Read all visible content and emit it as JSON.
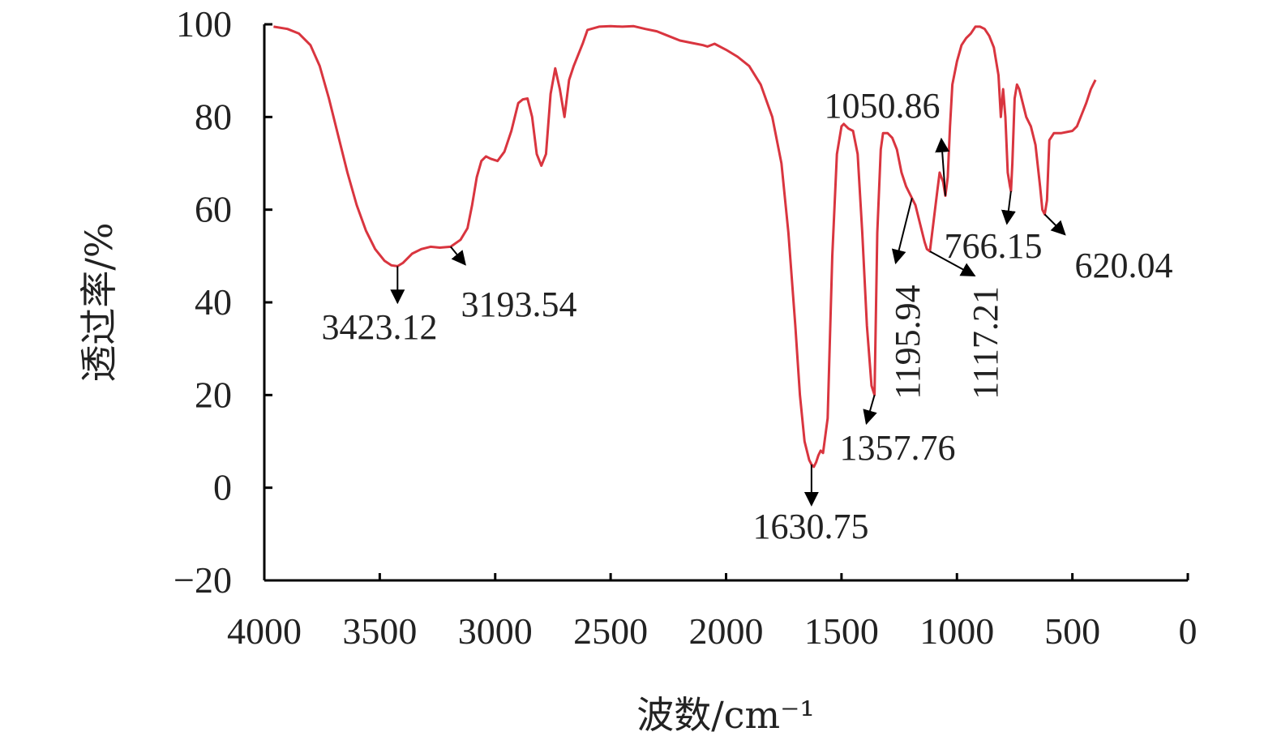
{
  "chart_data": {
    "type": "line",
    "title": "",
    "xlabel": "波数/cm⁻¹",
    "ylabel": "透过率/%",
    "xlim": [
      4000,
      0
    ],
    "ylim": [
      -20,
      100
    ],
    "x_ticks": [
      "4000",
      "3500",
      "3000",
      "2500",
      "2000",
      "1500",
      "1000",
      "500",
      "0"
    ],
    "y_ticks": [
      "100",
      "80",
      "60",
      "40",
      "20",
      "0",
      "−20"
    ],
    "grid": false,
    "line_color": "#d9353f",
    "series": [
      {
        "x": [
          3960,
          3900,
          3850,
          3800,
          3760,
          3720,
          3680,
          3640,
          3600,
          3560,
          3520,
          3480,
          3450,
          3423,
          3400,
          3360,
          3320,
          3280,
          3240,
          3193,
          3150,
          3120,
          3100,
          3080,
          3060,
          3040,
          3020,
          2990,
          2960,
          2930,
          2900,
          2880,
          2860,
          2840,
          2820,
          2800,
          2780,
          2760,
          2740,
          2720,
          2700,
          2680,
          2660,
          2620,
          2600,
          2550,
          2500,
          2450,
          2400,
          2350,
          2300,
          2250,
          2200,
          2150,
          2100,
          2080,
          2050,
          2000,
          1950,
          1900,
          1850,
          1800,
          1760,
          1730,
          1700,
          1680,
          1660,
          1640,
          1630,
          1620,
          1610,
          1600,
          1590,
          1580,
          1560,
          1540,
          1520,
          1500,
          1490,
          1470,
          1450,
          1430,
          1410,
          1390,
          1370,
          1357,
          1345,
          1330,
          1320,
          1300,
          1280,
          1260,
          1240,
          1220,
          1200,
          1195,
          1180,
          1160,
          1140,
          1130,
          1117,
          1100,
          1085,
          1075,
          1060,
          1050,
          1040,
          1030,
          1020,
          1000,
          980,
          960,
          940,
          920,
          900,
          880,
          860,
          840,
          820,
          810,
          800,
          790,
          780,
          770,
          766,
          760,
          750,
          740,
          730,
          720,
          700,
          680,
          660,
          640,
          630,
          620,
          610,
          600,
          580,
          550,
          520,
          500,
          480,
          460,
          440,
          420,
          400
        ],
        "values": [
          99.5,
          99.0,
          98.0,
          95.5,
          91.0,
          84.0,
          76.0,
          68.0,
          61.0,
          55.5,
          51.5,
          49.0,
          48.0,
          47.8,
          48.5,
          50.5,
          51.5,
          52.0,
          51.8,
          52.0,
          53.5,
          56.0,
          61.0,
          67.0,
          70.5,
          71.5,
          71.0,
          70.5,
          72.5,
          77.0,
          83.0,
          83.8,
          84.0,
          80.0,
          72.0,
          69.5,
          72.0,
          85.0,
          90.5,
          86.0,
          80.0,
          88.0,
          91.0,
          96.0,
          98.8,
          99.5,
          99.6,
          99.5,
          99.6,
          99.0,
          98.5,
          97.5,
          96.5,
          96.0,
          95.5,
          95.2,
          95.8,
          94.5,
          93.0,
          91.0,
          87.0,
          80.0,
          70.0,
          55.0,
          35.0,
          20.0,
          10.0,
          6.0,
          5.0,
          4.5,
          5.5,
          7.0,
          8.0,
          7.5,
          15.0,
          50.0,
          72.0,
          78.0,
          78.5,
          77.5,
          77.0,
          72.0,
          55.0,
          35.0,
          22.0,
          20.0,
          55.0,
          73.0,
          76.5,
          76.5,
          75.5,
          73.0,
          68.0,
          65.0,
          63.0,
          62.5,
          61.0,
          57.0,
          53.0,
          51.5,
          51.0,
          58.0,
          64.0,
          68.0,
          66.0,
          63.0,
          67.0,
          78.0,
          87.0,
          92.0,
          95.5,
          97.0,
          98.0,
          99.5,
          99.5,
          99.0,
          97.5,
          95.0,
          89.0,
          80.0,
          86.0,
          80.0,
          68.0,
          65.0,
          64.0,
          70.0,
          84.0,
          87.0,
          86.0,
          84.0,
          80.0,
          78.0,
          74.0,
          65.0,
          60.0,
          59.0,
          62.0,
          75.0,
          76.5,
          76.5,
          76.8,
          77.0,
          78.0,
          80.5,
          83.0,
          86.0,
          88.0
        ]
      }
    ],
    "annotations": [
      {
        "text": "3423.12",
        "x": 3423,
        "y": 47.8
      },
      {
        "text": "3193.54",
        "x": 3193,
        "y": 52.0
      },
      {
        "text": "1630.75",
        "x": 1630,
        "y": 5.0
      },
      {
        "text": "1357.76",
        "x": 1357,
        "y": 20.0
      },
      {
        "text": "1195.94",
        "x": 1195,
        "y": 62.5
      },
      {
        "text": "1117.21",
        "x": 1117,
        "y": 51.0
      },
      {
        "text": "1050.86",
        "x": 1050,
        "y": 63.0
      },
      {
        "text": "766.15",
        "x": 766,
        "y": 64.0
      },
      {
        "text": "620.04",
        "x": 620,
        "y": 59.0
      }
    ]
  }
}
